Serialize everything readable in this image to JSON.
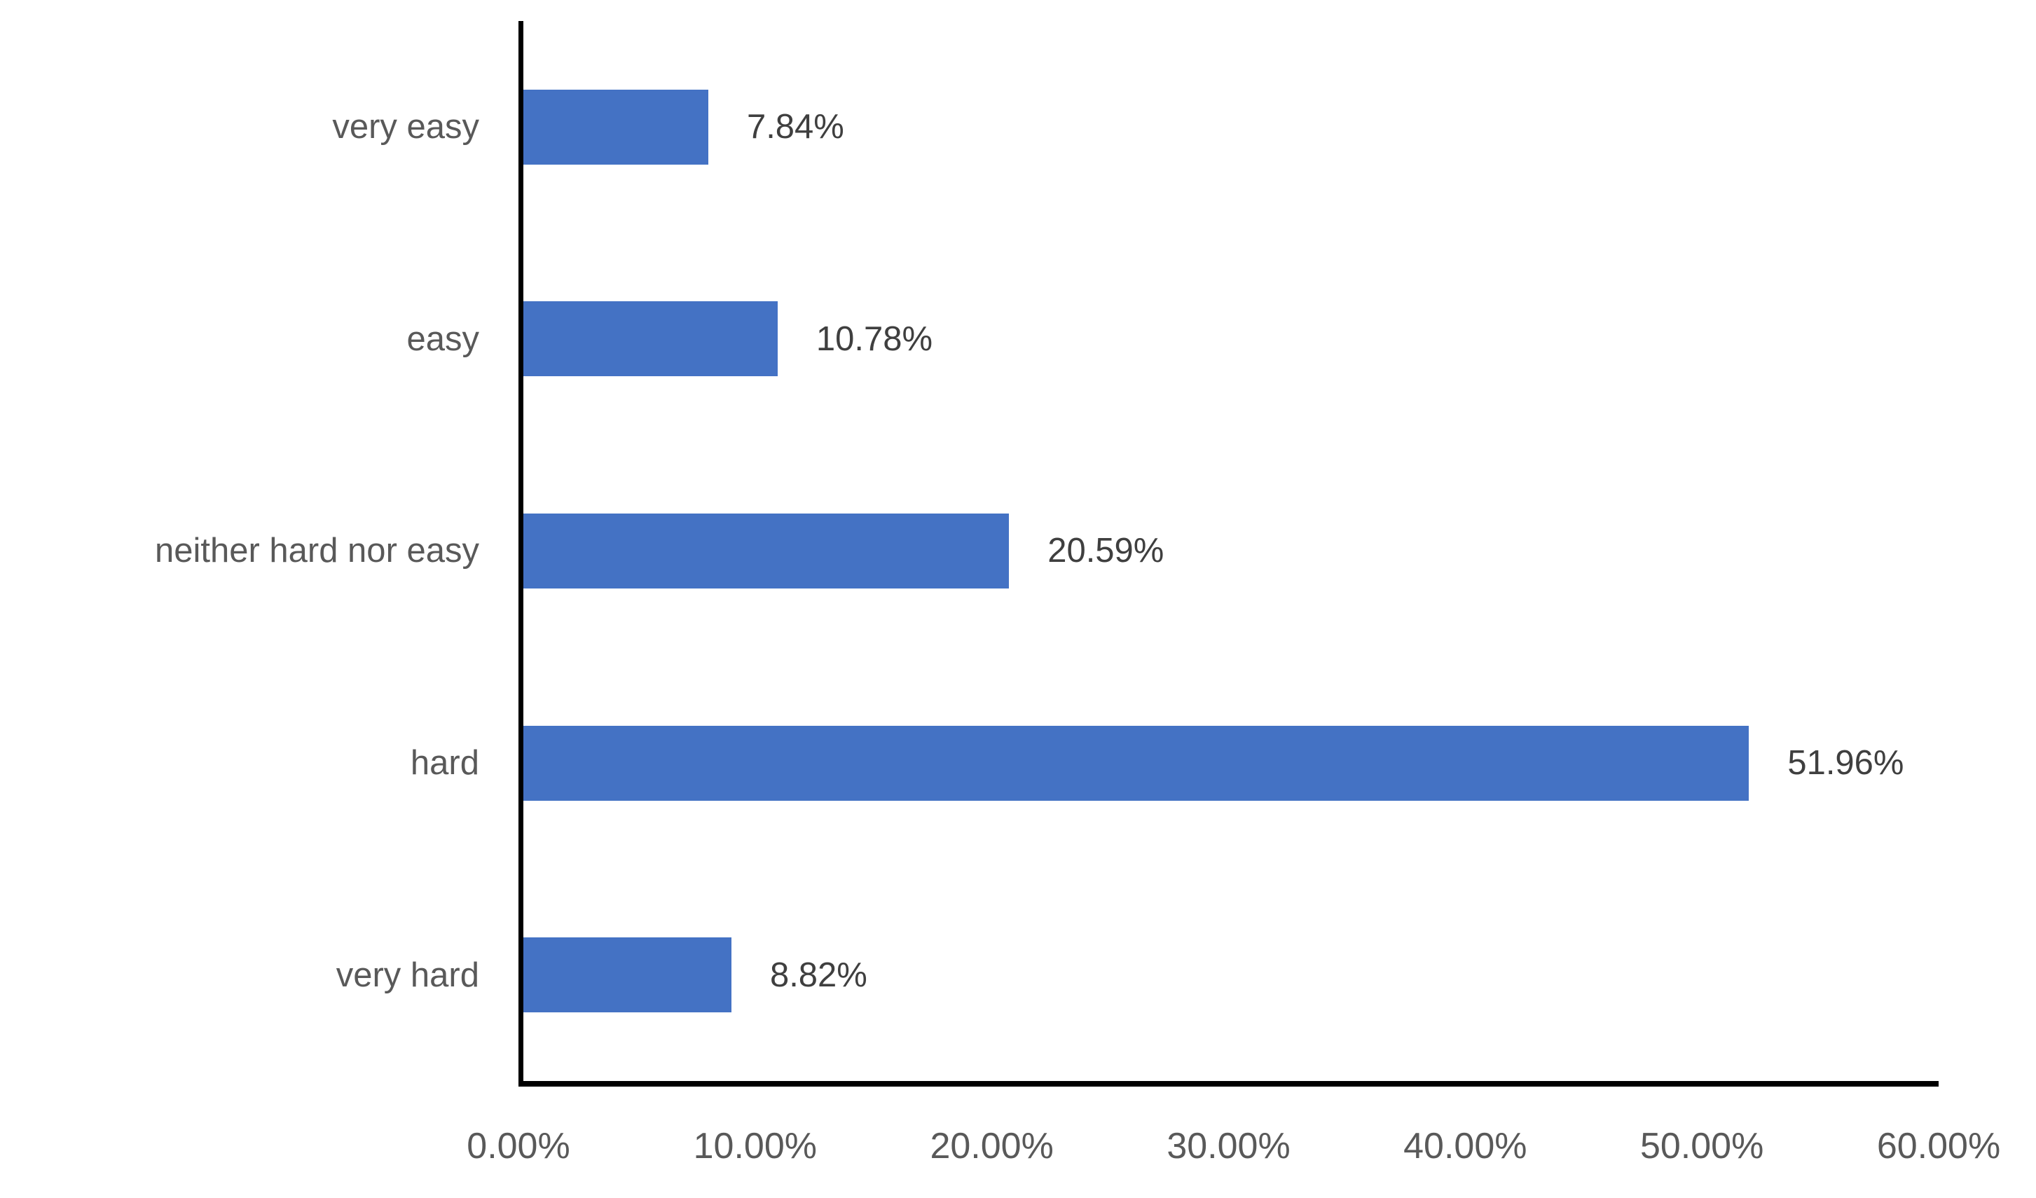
{
  "chart_data": {
    "type": "bar",
    "orientation": "horizontal",
    "title": "",
    "categories": [
      "very easy",
      "easy",
      "neither hard nor easy",
      "hard",
      "very hard"
    ],
    "values": [
      7.84,
      10.78,
      20.59,
      51.96,
      8.82
    ],
    "data_labels": [
      "7.84%",
      "10.78%",
      "20.59%",
      "51.96%",
      "8.82%"
    ],
    "x_ticks": [
      "0.00%",
      "10.00%",
      "20.00%",
      "30.00%",
      "40.00%",
      "50.00%",
      "60.00%"
    ],
    "x_tick_values": [
      0,
      10,
      20,
      30,
      40,
      50,
      60
    ],
    "xlim": [
      0,
      60
    ],
    "grid": false,
    "legend": false,
    "colors": {
      "bar": "#4472C4",
      "axis": "#000000",
      "category_label": "#595959",
      "value_label": "#3f3f3f"
    }
  }
}
